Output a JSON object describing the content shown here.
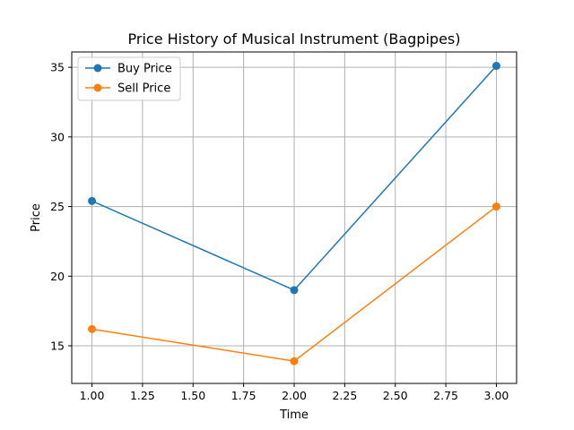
{
  "chart_data": {
    "type": "line",
    "title": "Price History of Musical Instrument (Bagpipes)",
    "xlabel": "Time",
    "ylabel": "Price",
    "x": [
      1.0,
      2.0,
      3.0
    ],
    "series": [
      {
        "name": "Buy Price",
        "color": "#1f77b4",
        "values": [
          25.4,
          19.0,
          35.1
        ]
      },
      {
        "name": "Sell Price",
        "color": "#ff7f0e",
        "values": [
          16.2,
          13.9,
          25.0
        ]
      }
    ],
    "xlim": [
      0.9,
      3.1
    ],
    "ylim": [
      12.3,
      36.1
    ],
    "xticks": [
      1.0,
      1.25,
      1.5,
      1.75,
      2.0,
      2.25,
      2.5,
      2.75,
      3.0
    ],
    "xtick_labels": [
      "1.00",
      "1.25",
      "1.50",
      "1.75",
      "2.00",
      "2.25",
      "2.50",
      "2.75",
      "3.00"
    ],
    "yticks": [
      15,
      20,
      25,
      30,
      35
    ],
    "ytick_labels": [
      "15",
      "20",
      "25",
      "30",
      "35"
    ],
    "grid": true,
    "legend_position": "top-left"
  }
}
